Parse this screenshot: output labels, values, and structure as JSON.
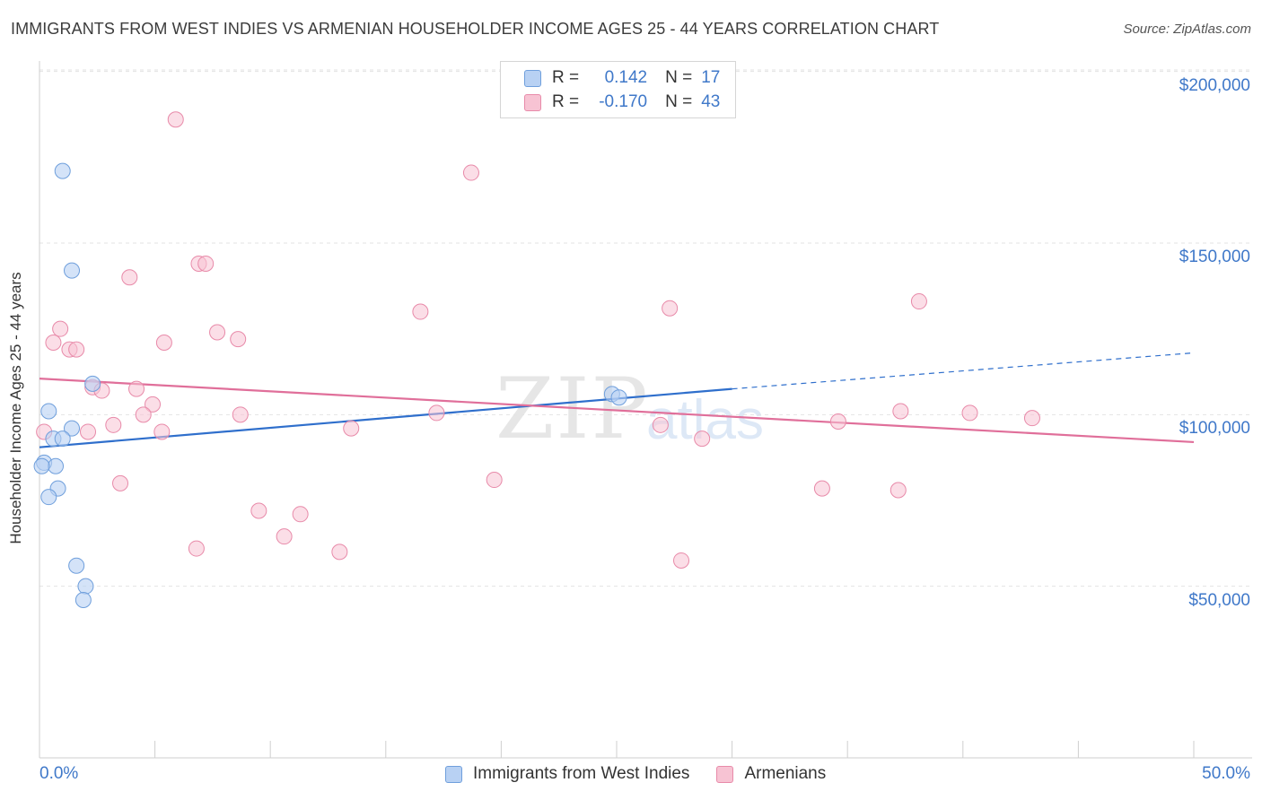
{
  "title": "IMMIGRANTS FROM WEST INDIES VS ARMENIAN HOUSEHOLDER INCOME AGES 25 - 44 YEARS CORRELATION CHART",
  "source": "Source: ZipAtlas.com",
  "watermark": {
    "zip": "ZIP",
    "atlas": "atlas"
  },
  "legend": {
    "rows": [
      {
        "r_label": "R =",
        "r_value": "0.142",
        "n_label": "N =",
        "n_value": "17"
      },
      {
        "r_label": "R =",
        "r_value": "-0.170",
        "n_label": "N =",
        "n_value": "43"
      }
    ]
  },
  "colors": {
    "blue_fill": "#b8d1f3",
    "blue_stroke": "#6f9fdc",
    "blue_line": "#2f6fcc",
    "pink_fill": "#f7c3d3",
    "pink_stroke": "#e88aa9",
    "pink_line": "#e06f9a",
    "axis_label": "#3f78c9"
  },
  "chart_data": {
    "type": "scatter",
    "xlabel": "",
    "ylabel": "Householder Income Ages 25 - 44 years",
    "xlim": [
      0,
      50
    ],
    "ylim": [
      0,
      210000
    ],
    "x_tick_labels": [
      "0.0%",
      "50.0%"
    ],
    "y_ticks": [
      50000,
      100000,
      150000,
      200000
    ],
    "y_tick_labels": [
      "$50,000",
      "$100,000",
      "$150,000",
      "$200,000"
    ],
    "grid": true,
    "legend_position": "bottom",
    "series": [
      {
        "name": "Immigrants from West Indies",
        "color": "#6f9fdc",
        "points": [
          [
            1.0,
            171000
          ],
          [
            1.4,
            142000
          ],
          [
            2.3,
            109000
          ],
          [
            0.4,
            101000
          ],
          [
            1.4,
            96000
          ],
          [
            0.6,
            93000
          ],
          [
            1.0,
            93000
          ],
          [
            0.2,
            86000
          ],
          [
            0.7,
            85000
          ],
          [
            0.8,
            78500
          ],
          [
            0.4,
            76000
          ],
          [
            1.6,
            56000
          ],
          [
            2.0,
            50000
          ],
          [
            1.9,
            46000
          ],
          [
            24.8,
            106000
          ],
          [
            25.1,
            105000
          ],
          [
            0.1,
            85000
          ]
        ],
        "trend": {
          "x0": 0,
          "y0": 90500,
          "x1": 30,
          "y1": 107500,
          "dashed_to_x": 50,
          "dashed_to_y": 118000
        }
      },
      {
        "name": "Armenians",
        "color": "#e88aa9",
        "points": [
          [
            5.9,
            186000
          ],
          [
            18.7,
            170500
          ],
          [
            3.9,
            140000
          ],
          [
            6.9,
            144000
          ],
          [
            7.2,
            144000
          ],
          [
            0.9,
            125000
          ],
          [
            0.6,
            121000
          ],
          [
            1.3,
            119000
          ],
          [
            1.6,
            119000
          ],
          [
            5.4,
            121000
          ],
          [
            7.7,
            124000
          ],
          [
            8.6,
            122000
          ],
          [
            16.5,
            130000
          ],
          [
            27.3,
            131000
          ],
          [
            38.1,
            133000
          ],
          [
            2.3,
            108000
          ],
          [
            2.7,
            107000
          ],
          [
            4.2,
            107500
          ],
          [
            4.9,
            103000
          ],
          [
            4.5,
            100000
          ],
          [
            3.2,
            97000
          ],
          [
            5.3,
            95000
          ],
          [
            2.1,
            95000
          ],
          [
            8.7,
            100000
          ],
          [
            13.5,
            96000
          ],
          [
            17.2,
            100500
          ],
          [
            26.9,
            97000
          ],
          [
            28.7,
            93000
          ],
          [
            34.6,
            98000
          ],
          [
            37.3,
            101000
          ],
          [
            40.3,
            100500
          ],
          [
            43.0,
            99000
          ],
          [
            3.5,
            80000
          ],
          [
            19.7,
            81000
          ],
          [
            9.5,
            72000
          ],
          [
            11.3,
            71000
          ],
          [
            10.6,
            64500
          ],
          [
            6.8,
            61000
          ],
          [
            13.0,
            60000
          ],
          [
            27.8,
            57500
          ],
          [
            33.9,
            78500
          ],
          [
            37.2,
            78000
          ],
          [
            0.2,
            95000
          ]
        ],
        "trend": {
          "x0": 0,
          "y0": 110500,
          "x1": 50,
          "y1": 92000
        }
      }
    ]
  }
}
